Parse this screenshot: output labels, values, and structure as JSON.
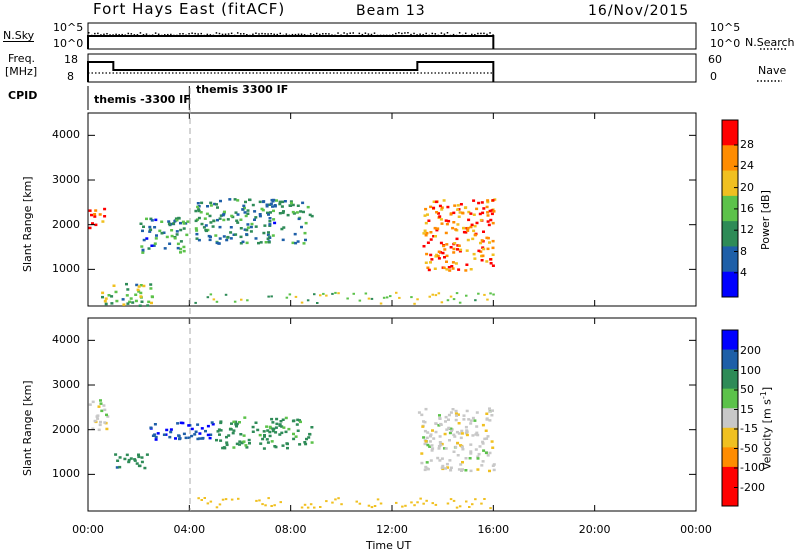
{
  "header": {
    "station": "Fort Hays East (fitACF)",
    "beam": "Beam 13",
    "date": "16/Nov/2015"
  },
  "top_panels": {
    "nsky_label": "N.Sky",
    "freq_label_1": "Freq.",
    "freq_label_2": "[MHz]",
    "cpid_label": "CPID",
    "nsearch_label": "N.Search",
    "nave_label": "Nave",
    "sky_ticks_left": [
      "10^5",
      "10^0"
    ],
    "sky_ticks_right": [
      "10^5",
      "10^0"
    ],
    "freq_ticks": [
      "18",
      "8"
    ],
    "nave_ticks": [
      "60",
      "0"
    ],
    "cpid_labels": [
      "themis -3300 IF",
      "themis 3300 IF"
    ]
  },
  "chart_data": [
    {
      "type": "heatmap",
      "title": "",
      "ylabel": "Slant Range [km]",
      "xlabel": "Time UT",
      "ylim": [
        180,
        4500
      ],
      "yticks": [
        1000,
        2000,
        3000,
        4000
      ],
      "x": [
        "00:00",
        "04:00",
        "08:00",
        "12:00",
        "16:00",
        "20:00",
        "00:00"
      ],
      "colorbar": {
        "label": "Power [dB]",
        "ticks": [
          "28",
          "24",
          "20",
          "16",
          "12",
          "8",
          "4"
        ],
        "range": [
          0,
          30
        ]
      },
      "features": [
        {
          "time_h": [
            0.0,
            0.6
          ],
          "range_km": [
            1900,
            2400
          ],
          "power_db": 24
        },
        {
          "time_h": [
            0.5,
            2.5
          ],
          "range_km": [
            200,
            700
          ],
          "power_db": 14
        },
        {
          "time_h": [
            2.0,
            4.0
          ],
          "range_km": [
            1400,
            2200
          ],
          "power_db": 10
        },
        {
          "time_h": [
            4.2,
            8.8
          ],
          "range_km": [
            1600,
            2600
          ],
          "power_db": 10
        },
        {
          "time_h": [
            13.2,
            16.0
          ],
          "range_km": [
            1000,
            2600
          ],
          "power_db": 24
        }
      ]
    },
    {
      "type": "heatmap",
      "title": "",
      "ylabel": "Slant Range [km]",
      "xlabel": "Time UT",
      "ylim": [
        180,
        4500
      ],
      "yticks": [
        1000,
        2000,
        3000,
        4000
      ],
      "x": [
        "00:00",
        "04:00",
        "08:00",
        "12:00",
        "16:00",
        "20:00",
        "00:00"
      ],
      "colorbar": {
        "label": "Velocity [m s^-1]",
        "ticks": [
          "200",
          "100",
          "50",
          "15",
          "-15",
          "-50",
          "-100",
          "-200"
        ],
        "range": [
          -200,
          200
        ]
      },
      "features": [
        {
          "time_h": [
            0.0,
            0.8
          ],
          "range_km": [
            2000,
            2700
          ],
          "velocity": 0
        },
        {
          "time_h": [
            1.0,
            2.3
          ],
          "range_km": [
            1100,
            1500
          ],
          "velocity": 60
        },
        {
          "time_h": [
            2.2,
            5.0
          ],
          "range_km": [
            1800,
            2200
          ],
          "velocity": 150
        },
        {
          "time_h": [
            5.0,
            8.8
          ],
          "range_km": [
            1600,
            2300
          ],
          "velocity": 40
        },
        {
          "time_h": [
            13.0,
            16.0
          ],
          "range_km": [
            1100,
            2500
          ],
          "velocity": 0
        }
      ]
    }
  ],
  "colors": {
    "scale": [
      "#0000ff",
      "#1e5fa8",
      "#2e8b57",
      "#5cc24a",
      "#c8c8c8",
      "#f0c020",
      "#ff8c00",
      "#ff0000"
    ]
  }
}
